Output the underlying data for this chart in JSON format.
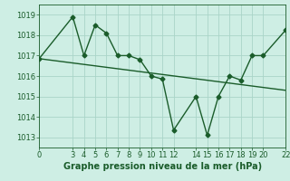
{
  "xlabel": "Graphe pression niveau de la mer (hPa)",
  "background_color": "#ceeee4",
  "grid_color": "#aad4c8",
  "line_color": "#1a5c2a",
  "xlim": [
    0,
    22
  ],
  "ylim": [
    1012.5,
    1019.5
  ],
  "yticks": [
    1013,
    1014,
    1015,
    1016,
    1017,
    1018,
    1019
  ],
  "xticks": [
    0,
    3,
    4,
    5,
    6,
    7,
    8,
    9,
    10,
    11,
    12,
    14,
    15,
    16,
    17,
    18,
    19,
    20,
    22
  ],
  "line1_x": [
    0,
    3,
    4,
    5,
    6,
    7,
    8,
    9,
    10,
    11,
    12,
    14,
    15,
    16,
    17,
    18,
    19,
    20,
    22
  ],
  "line1_y": [
    1016.85,
    1018.9,
    1017.0,
    1018.5,
    1018.1,
    1017.0,
    1017.0,
    1016.8,
    1016.0,
    1015.85,
    1013.35,
    1015.0,
    1013.1,
    1015.0,
    1016.0,
    1015.8,
    1017.0,
    1017.0,
    1018.25
  ],
  "line2_x": [
    0,
    22
  ],
  "line2_y": [
    1016.85,
    1015.3
  ],
  "marker": "D",
  "marker_size": 2.5,
  "line_width": 1.0,
  "xlabel_fontsize": 7,
  "tick_labelsize": 6
}
